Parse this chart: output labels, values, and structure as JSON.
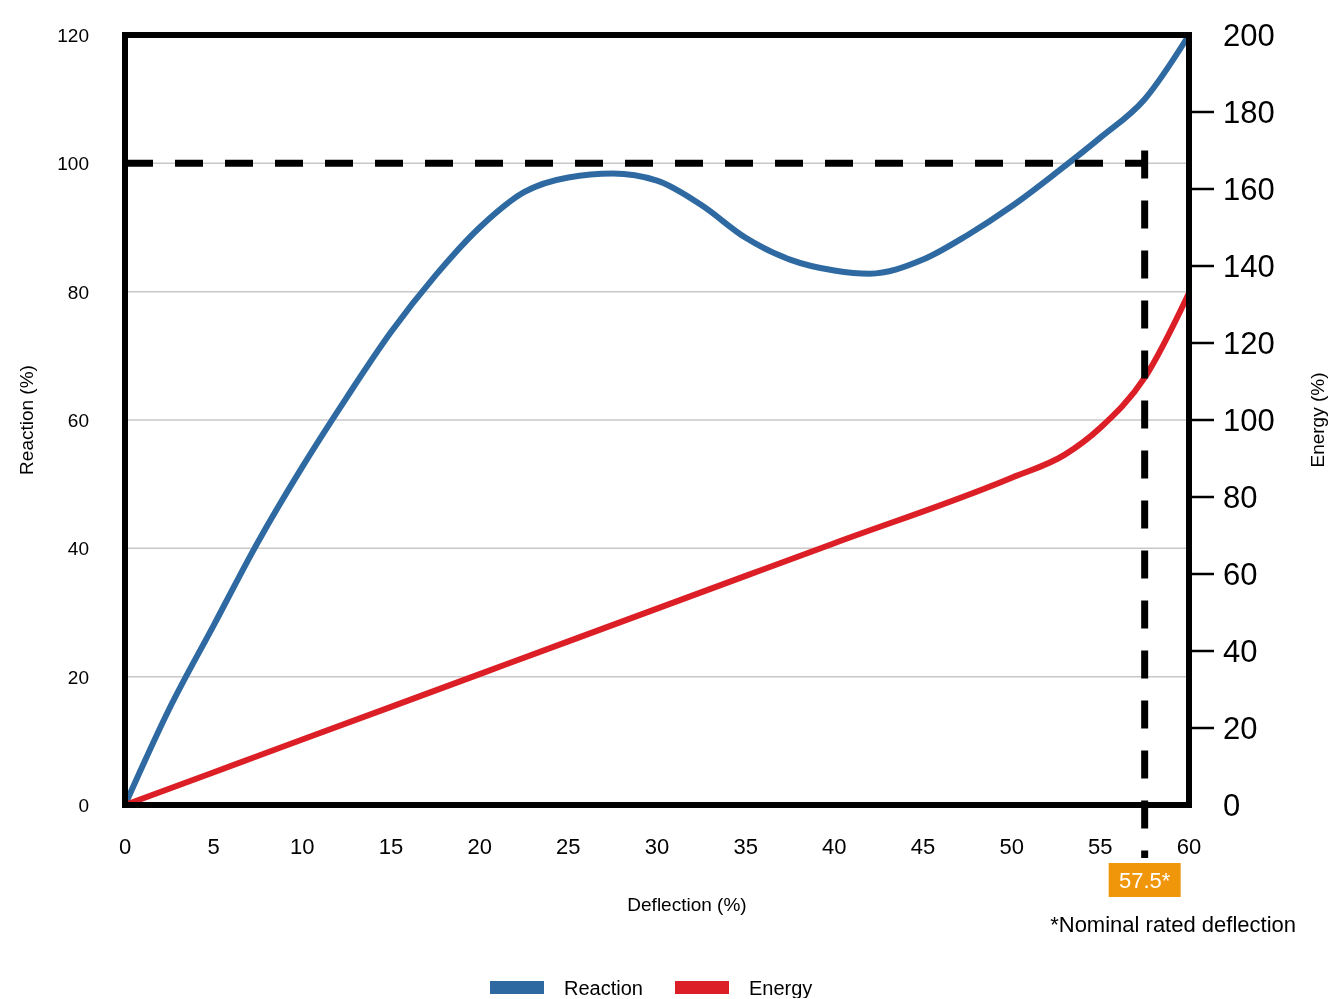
{
  "chart_data": {
    "type": "line",
    "xlabel": "Deflection (%)",
    "ylabel": "Reaction (%)",
    "y2label": "Energy (%)",
    "x": [
      0,
      2.5,
      5,
      7.5,
      10,
      12.5,
      15,
      17.5,
      20,
      22.5,
      25,
      27.5,
      30,
      32.5,
      35,
      37.5,
      40,
      42,
      45,
      47.5,
      50,
      52.5,
      55,
      57.5,
      60
    ],
    "series": [
      {
        "name": "Reaction",
        "color": "#2e6aa1",
        "values": [
          0,
          15,
          28,
          41,
          52.7,
          63.5,
          73.7,
          82.5,
          90,
          95.5,
          97.8,
          98.4,
          97.3,
          93.5,
          88.4,
          85,
          83.3,
          82.8,
          85,
          88.8,
          93.3,
          98.5,
          104,
          110,
          120
        ]
      },
      {
        "name": "Energy",
        "color": "#dc1f26",
        "axis": "y2",
        "x": [
          0,
          10,
          20,
          30,
          40,
          50,
          53,
          55,
          57.5,
          60
        ],
        "values": [
          0,
          17,
          34,
          51,
          68,
          85,
          91,
          98,
          111,
          133
        ]
      }
    ],
    "xlim": [
      0,
      60
    ],
    "xticks": [
      0,
      5,
      10,
      15,
      20,
      25,
      30,
      35,
      40,
      45,
      50,
      55,
      60
    ],
    "ylim": [
      0,
      120
    ],
    "yticks": [
      0,
      20,
      40,
      60,
      80,
      100,
      120
    ],
    "y2lim": [
      0,
      200
    ],
    "y2ticks": [
      0,
      20,
      40,
      60,
      80,
      100,
      120,
      140,
      160,
      180,
      200
    ],
    "ref_lines": [
      {
        "axis": "y",
        "value": 100,
        "label": null,
        "color": "#000000",
        "line_style": "dashed"
      },
      {
        "axis": "x",
        "value": 57.5,
        "label": "57.5*",
        "color": "#000000",
        "line_style": "dashed"
      }
    ],
    "annotations": [
      "*Nominal rated deflection"
    ],
    "grid": "y",
    "legend": "bottom",
    "line_style": "solid",
    "marker": "none"
  }
}
